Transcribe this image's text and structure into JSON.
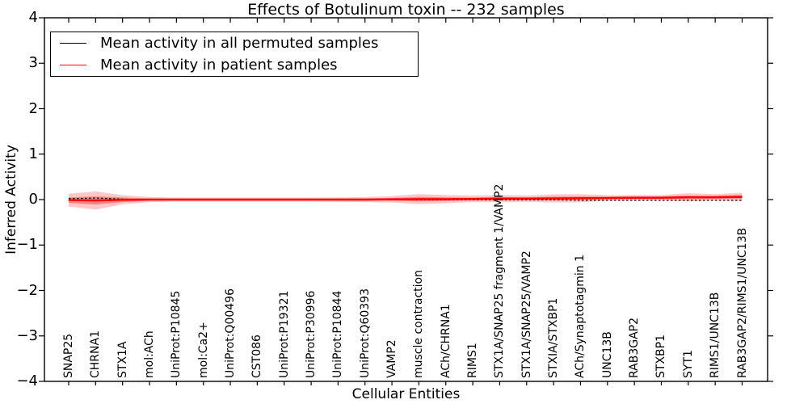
{
  "chart_data": {
    "type": "line",
    "title": "Effects of Botulinum toxin -- 232 samples",
    "xlabel": "Cellular Entities",
    "ylabel": "Inferred Activity",
    "ylim": [
      -4,
      4
    ],
    "yticks": [
      -4,
      -3,
      -2,
      -1,
      0,
      1,
      2,
      3,
      4
    ],
    "ytick_labels": [
      "−4",
      "−3",
      "−2",
      "−1",
      "0",
      "1",
      "2",
      "3",
      "4"
    ],
    "grid": false,
    "legend_position": "upper left",
    "background": "#ffffff",
    "axis_color": "#000000",
    "categories": [
      "SNAP25",
      "CHRNA1",
      "STX1A",
      "mol:ACh",
      "UniProt:P10845",
      "mol:Ca2+",
      "UniProt:Q00496",
      "CST086",
      "UniProt:P19321",
      "UniProt:P30996",
      "UniProt:P10844",
      "UniProt:Q60393",
      "VAMP2",
      "muscle contraction",
      "ACh/CHRNA1",
      "RIMS1",
      "STX1A/SNAP25 fragment 1/VAMP2",
      "STX1A/SNAP25/VAMP2",
      "STXIA/STXBP1",
      "ACh/Synaptotagmin 1",
      "UNC13B",
      "RAB3GAP2",
      "STXBP1",
      "SYT1",
      "RIMS1/UNC13B",
      "RAB3GAP2/RIMS1/UNC13B"
    ],
    "series": [
      {
        "name": "Mean activity in all permuted samples",
        "color": "#000000",
        "style": "dashed",
        "line_width": 1.2,
        "values": [
          0.02,
          0.035,
          0.01,
          0,
          0,
          0,
          0,
          0,
          0,
          0,
          0,
          0,
          0,
          -0.005,
          -0.005,
          -0.005,
          -0.005,
          -0.005,
          -0.005,
          -0.015,
          -0.015,
          -0.015,
          -0.015,
          -0.015,
          -0.015,
          -0.015
        ]
      },
      {
        "name": "Mean activity in patient samples",
        "color": "#ff0000",
        "style": "solid",
        "line_width": 2.4,
        "values": [
          -0.01,
          -0.02,
          -0.005,
          0,
          0,
          0,
          0,
          0,
          0,
          0,
          0,
          0,
          0.005,
          0.01,
          0.01,
          0.015,
          0.02,
          0.02,
          0.025,
          0.03,
          0.035,
          0.04,
          0.04,
          0.05,
          0.05,
          0.06
        ]
      }
    ],
    "band": {
      "name": "patient-sample activity spread",
      "color": "#ff0000",
      "outer_alpha": 0.22,
      "inner_alpha": 0.33,
      "outer_halfwidth": [
        0.14,
        0.2,
        0.1,
        0.055,
        0.045,
        0.045,
        0.045,
        0.045,
        0.045,
        0.045,
        0.05,
        0.055,
        0.07,
        0.11,
        0.09,
        0.07,
        0.08,
        0.07,
        0.09,
        0.09,
        0.06,
        0.06,
        0.06,
        0.09,
        0.07,
        0.09
      ],
      "inner_halfwidth": [
        0.06,
        0.09,
        0.05,
        0.025,
        0.02,
        0.02,
        0.02,
        0.02,
        0.02,
        0.02,
        0.022,
        0.025,
        0.03,
        0.05,
        0.04,
        0.03,
        0.035,
        0.03,
        0.04,
        0.04,
        0.027,
        0.027,
        0.027,
        0.04,
        0.03,
        0.04
      ]
    }
  }
}
